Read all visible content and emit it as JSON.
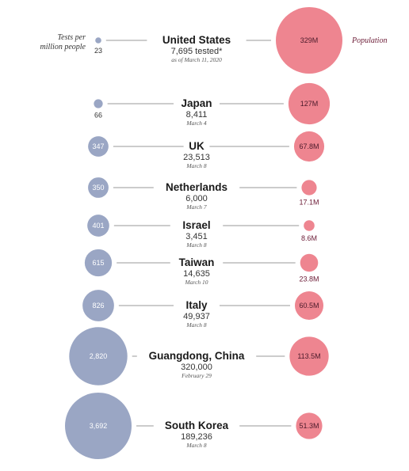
{
  "headers": {
    "tests_line1": "Tests per",
    "tests_line2": "million people",
    "population": "Population"
  },
  "colors": {
    "tests": "#9aa6c4",
    "population": "#ee8590",
    "population_label": "#6b1a35",
    "line": "#9a9a9a"
  },
  "chart_data": {
    "type": "bubble",
    "series": [
      {
        "name": "Tests per million people",
        "key": "tests_per_million"
      },
      {
        "name": "Population",
        "key": "population_m"
      }
    ],
    "rows": [
      {
        "country": "United States",
        "tested": "7,695 tested*",
        "date": "as of March 11, 2020",
        "tests_per_million": 23,
        "tests_label": "23",
        "population_m": 329,
        "population_label": "329M"
      },
      {
        "country": "Japan",
        "tested": "8,411",
        "date": "March 4",
        "tests_per_million": 66,
        "tests_label": "66",
        "population_m": 127,
        "population_label": "127M"
      },
      {
        "country": "UK",
        "tested": "23,513",
        "date": "March 8",
        "tests_per_million": 347,
        "tests_label": "347",
        "population_m": 67.8,
        "population_label": "67.8M"
      },
      {
        "country": "Netherlands",
        "tested": "6,000",
        "date": "March 7",
        "tests_per_million": 350,
        "tests_label": "350",
        "population_m": 17.1,
        "population_label": "17.1M"
      },
      {
        "country": "Israel",
        "tested": "3,451",
        "date": "March 8",
        "tests_per_million": 401,
        "tests_label": "401",
        "population_m": 8.6,
        "population_label": "8.6M"
      },
      {
        "country": "Taiwan",
        "tested": "14,635",
        "date": "March 10",
        "tests_per_million": 615,
        "tests_label": "615",
        "population_m": 23.8,
        "population_label": "23.8M"
      },
      {
        "country": "Italy",
        "tested": "49,937",
        "date": "March 8",
        "tests_per_million": 826,
        "tests_label": "826",
        "population_m": 60.5,
        "population_label": "60.5M"
      },
      {
        "country": "Guangdong, China",
        "tested": "320,000",
        "date": "February 29",
        "tests_per_million": 2820,
        "tests_label": "2,820",
        "population_m": 113.5,
        "population_label": "113.5M"
      },
      {
        "country": "South Korea",
        "tested": "189,236",
        "date": "March 8",
        "tests_per_million": 3692,
        "tests_label": "3,692",
        "population_m": 51.3,
        "population_label": "51.3M"
      }
    ]
  }
}
